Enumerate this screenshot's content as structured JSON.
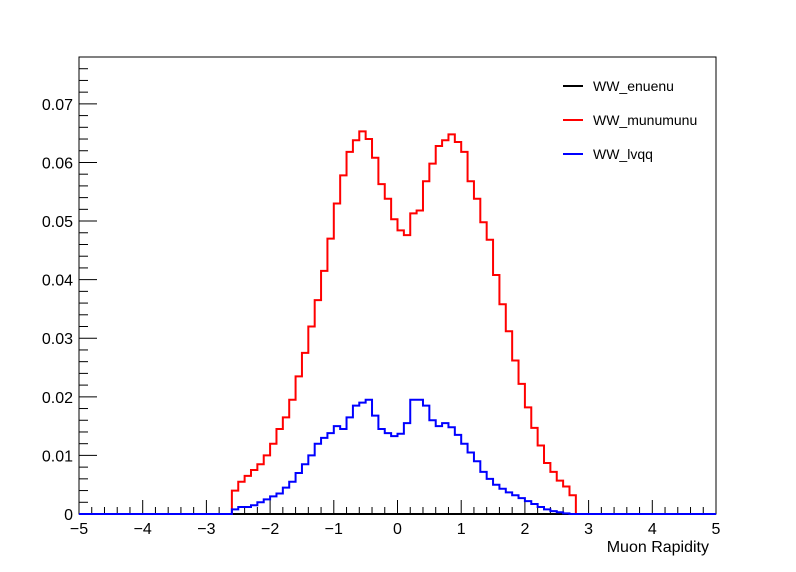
{
  "chart_data": {
    "type": "line",
    "title": "",
    "xlabel": "Muon Rapidity",
    "ylabel": "",
    "xlim": [
      -5,
      5
    ],
    "ylim": [
      0,
      0.078
    ],
    "bin_width": 0.1,
    "x_ticks": [
      -5,
      -4,
      -3,
      -2,
      -1,
      0,
      1,
      2,
      3,
      4,
      5
    ],
    "x_tick_labels": [
      "−5",
      "−4",
      "−3",
      "−2",
      "−1",
      "0",
      "1",
      "2",
      "3",
      "4",
      "5"
    ],
    "y_ticks": [
      0,
      0.01,
      0.02,
      0.03,
      0.04,
      0.05,
      0.06,
      0.07
    ],
    "y_tick_labels": [
      "0",
      "0.01",
      "0.02",
      "0.03",
      "0.04",
      "0.05",
      "0.06",
      "0.07"
    ],
    "grid": false,
    "legend_position": "top-right",
    "series": [
      {
        "name": "WW_enuenu",
        "color": "#000000",
        "bin_start": -2.6,
        "values": []
      },
      {
        "name": "WW_munumunu",
        "color": "#ff0000",
        "bin_start": -2.6,
        "values": [
          0.004,
          0.0055,
          0.0065,
          0.0075,
          0.0085,
          0.01,
          0.012,
          0.0145,
          0.0165,
          0.0195,
          0.0235,
          0.0275,
          0.032,
          0.0365,
          0.0415,
          0.047,
          0.053,
          0.0578,
          0.0618,
          0.0638,
          0.0653,
          0.064,
          0.0608,
          0.0563,
          0.0538,
          0.0503,
          0.0484,
          0.0476,
          0.0513,
          0.0518,
          0.0568,
          0.0598,
          0.0628,
          0.0638,
          0.0648,
          0.0635,
          0.0618,
          0.0568,
          0.0538,
          0.0498,
          0.0468,
          0.0408,
          0.0358,
          0.0312,
          0.0262,
          0.0222,
          0.0182,
          0.0147,
          0.0117,
          0.0087,
          0.0072,
          0.0057,
          0.0047,
          0.0032
        ]
      },
      {
        "name": "WW_lvqq",
        "color": "#0000ff",
        "bin_start": -2.6,
        "values": [
          0.0008,
          0.0012,
          0.0012,
          0.0015,
          0.002,
          0.0025,
          0.003,
          0.0035,
          0.0045,
          0.0055,
          0.007,
          0.0085,
          0.01,
          0.012,
          0.013,
          0.0138,
          0.015,
          0.0145,
          0.0165,
          0.0185,
          0.019,
          0.0195,
          0.0168,
          0.0145,
          0.0138,
          0.0133,
          0.0137,
          0.0155,
          0.0195,
          0.0195,
          0.0185,
          0.016,
          0.015,
          0.0155,
          0.0148,
          0.0135,
          0.012,
          0.0105,
          0.009,
          0.0072,
          0.006,
          0.005,
          0.0043,
          0.0037,
          0.0032,
          0.0027,
          0.0022,
          0.0017,
          0.0012,
          0.0008,
          0.0005,
          0.0003,
          0.0001,
          0.0
        ]
      }
    ]
  }
}
